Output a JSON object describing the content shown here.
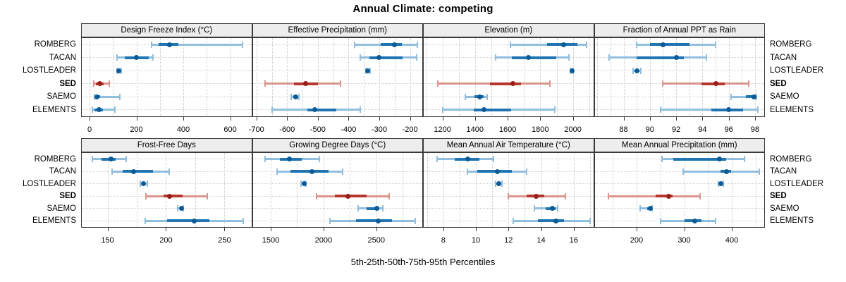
{
  "title": "Annual Climate: competing",
  "xlabel": "5th-25th-50th-75th-95th Percentiles",
  "categories": [
    "ROMBERG",
    "TACAN",
    "LOSTLEADER",
    "SED",
    "SAEMO",
    "ELEMENTS"
  ],
  "highlight_category": "SED",
  "colors": {
    "blue_range": "#92BEDD",
    "blue_box": "#1F74B1",
    "blue_dot": "#0C5B97",
    "red_range": "#DA958D",
    "red_box": "#B5372E",
    "red_dot": "#9B1F17",
    "strip_bg": "#EDEDED",
    "panel_border": "#3A3A3A",
    "grid": "#C9C9C9"
  },
  "chart_data": {
    "type": "dot-interval-trellis",
    "percentiles": [
      5,
      25,
      50,
      75,
      95
    ],
    "rows": 2,
    "cols": 4,
    "legend_position": "none",
    "grid": "dotted",
    "panels": [
      {
        "title": "Design Freeze Index (°C)",
        "ticks": [
          0,
          200,
          400,
          600
        ],
        "grid_step": 100,
        "xlim": [
          -33,
          690
        ],
        "series": {
          "ROMBERG": [
            264,
            296,
            342,
            380,
            652
          ],
          "TACAN": [
            116,
            150,
            201,
            252,
            269
          ],
          "LOSTLEADER": [
            116,
            122,
            126,
            130,
            136
          ],
          "SED": [
            17,
            28,
            44,
            60,
            84
          ],
          "SAEMO": [
            20,
            26,
            32,
            46,
            130
          ],
          "ELEMENTS": [
            12,
            22,
            39,
            56,
            108
          ]
        }
      },
      {
        "title": "Effective Precipitation (mm)",
        "ticks": [
          -700,
          -600,
          -500,
          -400,
          -300,
          -200
        ],
        "grid_step": 50,
        "xlim": [
          -712,
          -160
        ],
        "series": {
          "ROMBERG": [
            -380,
            -296,
            -251,
            -227,
            -177
          ],
          "TACAN": [
            -361,
            -332,
            -302,
            -225,
            -179
          ],
          "LOSTLEADER": [
            -343,
            -340,
            -337,
            -334,
            -331
          ],
          "SED": [
            -673,
            -578,
            -539,
            -500,
            -427
          ],
          "SAEMO": [
            -586,
            -579,
            -573,
            -568,
            -562
          ],
          "ELEMENTS": [
            -648,
            -535,
            -509,
            -440,
            -361
          ]
        }
      },
      {
        "title": "Elevation (m)",
        "ticks": [
          1200,
          1400,
          1600,
          1800,
          2000
        ],
        "grid_step": 100,
        "xlim": [
          1085,
          2125
        ],
        "series": {
          "ROMBERG": [
            1615,
            1840,
            1945,
            2030,
            2085
          ],
          "TACAN": [
            1525,
            1625,
            1725,
            1900,
            1975
          ],
          "LOSTLEADER": [
            1983,
            1988,
            1993,
            1998,
            2003
          ],
          "SED": [
            1170,
            1490,
            1632,
            1680,
            1858
          ],
          "SAEMO": [
            1340,
            1395,
            1428,
            1452,
            1475
          ],
          "ELEMENTS": [
            1200,
            1390,
            1455,
            1620,
            1890
          ]
        }
      },
      {
        "title": "Fraction of Annual PPT as Rain",
        "ticks": [
          88,
          90,
          92,
          94,
          96,
          98
        ],
        "grid_step": 1,
        "xlim": [
          85.8,
          98.7
        ],
        "series": {
          "ROMBERG": [
            89.0,
            90.0,
            91.0,
            93.0,
            95.0
          ],
          "TACAN": [
            86.9,
            89.0,
            92.0,
            92.6,
            94.3
          ],
          "LOSTLEADER": [
            88.7,
            88.9,
            89.0,
            89.1,
            89.3
          ],
          "SED": [
            91.0,
            93.9,
            95.0,
            95.7,
            97.5
          ],
          "SAEMO": [
            96.2,
            97.3,
            97.9,
            98.0,
            98.1
          ],
          "ELEMENTS": [
            90.8,
            94.7,
            96.0,
            97.1,
            98.2
          ]
        }
      },
      {
        "title": "Frost-Free Days",
        "ticks": [
          150,
          200,
          250
        ],
        "grid_step": 25,
        "xlim": [
          128,
          273
        ],
        "series": {
          "ROMBERG": [
            137,
            145,
            153,
            157,
            166
          ],
          "TACAN": [
            154,
            163,
            172,
            189,
            203
          ],
          "LOSTLEADER": [
            178,
            180,
            181,
            182,
            184
          ],
          "SED": [
            183,
            198,
            203,
            214,
            235
          ],
          "SAEMO": [
            210,
            212,
            213,
            214,
            215
          ],
          "ELEMENTS": [
            182,
            201,
            224,
            237,
            266
          ]
        }
      },
      {
        "title": "Growing Degree Days (°C)",
        "ticks": [
          1500,
          2000,
          2500
        ],
        "grid_step": 250,
        "xlim": [
          1330,
          2935
        ],
        "series": {
          "ROMBERG": [
            1445,
            1585,
            1675,
            1795,
            1960
          ],
          "TACAN": [
            1560,
            1690,
            1890,
            2050,
            2180
          ],
          "LOSTLEADER": [
            1790,
            1805,
            1815,
            1825,
            1835
          ],
          "SED": [
            1935,
            2105,
            2230,
            2405,
            2620
          ],
          "SAEMO": [
            2330,
            2410,
            2505,
            2530,
            2560
          ],
          "ELEMENTS": [
            2060,
            2310,
            2520,
            2650,
            2870
          ]
        }
      },
      {
        "title": "Mean Annual Air Temperature (°C)",
        "ticks": [
          8,
          10,
          12,
          14,
          16
        ],
        "grid_step": 1,
        "xlim": [
          6.8,
          17.2
        ],
        "series": {
          "ROMBERG": [
            7.6,
            8.7,
            9.5,
            10.2,
            11.1
          ],
          "TACAN": [
            9.5,
            10.1,
            11.3,
            12.2,
            13.1
          ],
          "LOSTLEADER": [
            11.2,
            11.3,
            11.4,
            11.5,
            11.6
          ],
          "SED": [
            12.0,
            13.1,
            13.7,
            14.2,
            15.5
          ],
          "SAEMO": [
            13.6,
            14.3,
            14.7,
            14.9,
            15.0
          ],
          "ELEMENTS": [
            12.3,
            13.8,
            14.9,
            15.4,
            17.0
          ]
        }
      },
      {
        "title": "Mean Annual Precipitation (mm)",
        "ticks": [
          200,
          300,
          400
        ],
        "grid_step": 50,
        "xlim": [
          112,
          468
        ],
        "series": {
          "ROMBERG": [
            254,
            277,
            374,
            388,
            427
          ],
          "TACAN": [
            298,
            376,
            389,
            398,
            458
          ],
          "LOSTLEADER": [
            372,
            375,
            377,
            379,
            382
          ],
          "SED": [
            141,
            240,
            267,
            276,
            333
          ],
          "SAEMO": [
            208,
            222,
            229,
            231,
            233
          ],
          "ELEMENTS": [
            250,
            300,
            322,
            336,
            366
          ]
        }
      }
    ]
  }
}
